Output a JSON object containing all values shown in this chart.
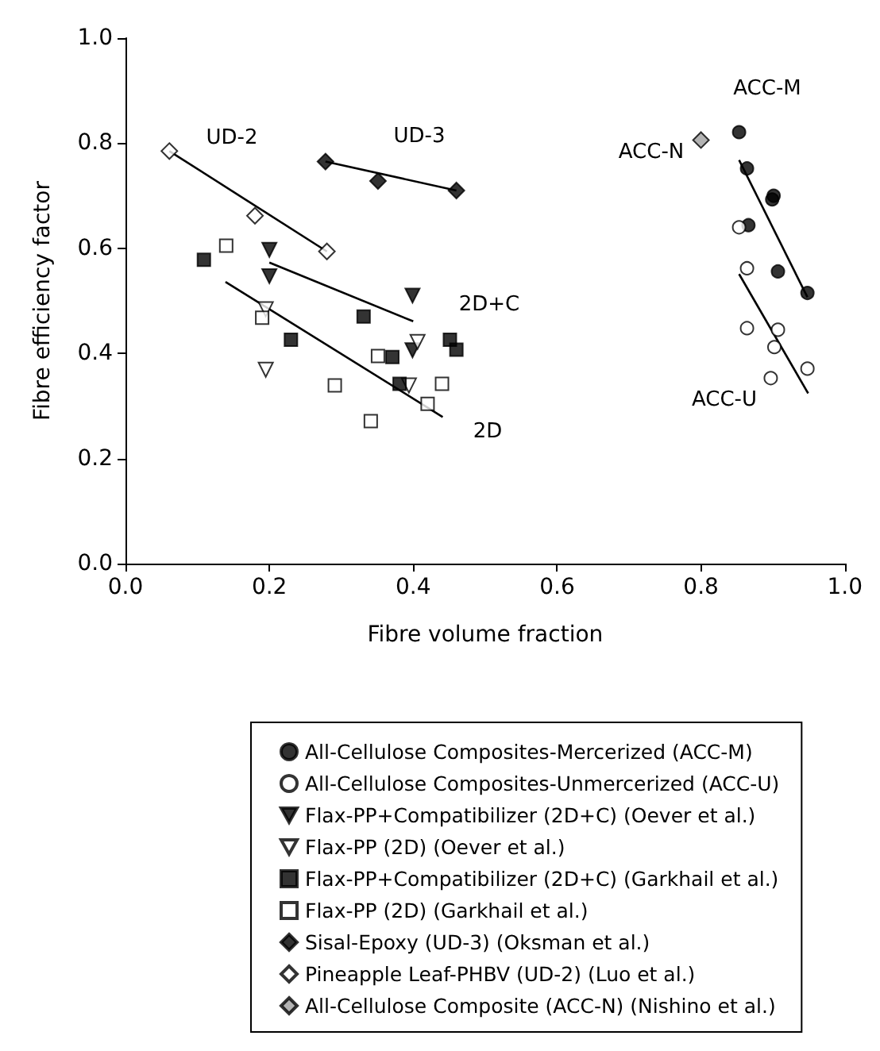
{
  "chart_data": {
    "type": "scatter",
    "xlabel": "Fibre volume fraction",
    "ylabel": "Fibre efficiency factor",
    "xlim": [
      0,
      1
    ],
    "ylim": [
      0,
      1
    ],
    "xticks": [
      {
        "value": 0,
        "label": "0.0"
      },
      {
        "value": 0.2,
        "label": "0.2"
      },
      {
        "value": 0.4,
        "label": "0.4"
      },
      {
        "value": 0.6,
        "label": "0.6"
      },
      {
        "value": 0.8,
        "label": "0.8"
      },
      {
        "value": 1,
        "label": "1.0"
      }
    ],
    "yticks": [
      {
        "value": 0,
        "label": "0.0"
      },
      {
        "value": 0.2,
        "label": "0.2"
      },
      {
        "value": 0.4,
        "label": "0.4"
      },
      {
        "value": 0.6,
        "label": "0.6"
      },
      {
        "value": 0.8,
        "label": "0.8"
      },
      {
        "value": 1,
        "label": "1.0"
      }
    ],
    "grid": false,
    "legend": "bottom",
    "series": [
      {
        "name": "All-Cellulose Composites-Mercerized (ACC-M)",
        "marker": "circle",
        "color": "#000000",
        "x": [
          0.853,
          0.864,
          0.901,
          0.899,
          0.866,
          0.907,
          0.948
        ],
        "values": [
          0.821,
          0.752,
          0.7,
          0.693,
          0.644,
          0.556,
          0.515
        ]
      },
      {
        "name": "All-Cellulose Composites-Unmercerized (ACC-U)",
        "marker": "circle",
        "color": "#ffffff",
        "x": [
          0.853,
          0.864,
          0.864,
          0.907,
          0.902,
          0.897,
          0.948
        ],
        "values": [
          0.64,
          0.562,
          0.448,
          0.445,
          0.412,
          0.353,
          0.371
        ]
      },
      {
        "name": "Flax-PP+Compatibilizer (2D+C) (Oever et al.)",
        "marker": "triangle",
        "color": "#000000",
        "x": [
          0.2,
          0.2,
          0.399,
          0.399
        ],
        "values": [
          0.597,
          0.547,
          0.51,
          0.406
        ]
      },
      {
        "name": "Flax-PP (2D) (Oever et al.)",
        "marker": "triangle",
        "color": "#ffffff",
        "x": [
          0.195,
          0.195,
          0.406,
          0.394
        ],
        "values": [
          0.484,
          0.369,
          0.422,
          0.339
        ]
      },
      {
        "name": "Flax-PP+Compatibilizer (2D+C) (Garkhail et al.)",
        "marker": "square",
        "color": "#000000",
        "x": [
          0.109,
          0.23,
          0.331,
          0.371,
          0.381,
          0.451,
          0.46
        ],
        "values": [
          0.578,
          0.426,
          0.47,
          0.393,
          0.342,
          0.426,
          0.407
        ]
      },
      {
        "name": "Flax-PP (2D) (Garkhail et al.)",
        "marker": "square",
        "color": "#ffffff",
        "x": [
          0.14,
          0.19,
          0.291,
          0.341,
          0.351,
          0.42,
          0.44
        ],
        "values": [
          0.605,
          0.468,
          0.339,
          0.271,
          0.395,
          0.304,
          0.342
        ]
      },
      {
        "name": "Sisal-Epoxy (UD-3) (Oksman et al.)",
        "marker": "diamond",
        "color": "#000000",
        "x": [
          0.278,
          0.351,
          0.46
        ],
        "values": [
          0.765,
          0.728,
          0.71
        ]
      },
      {
        "name": "Pineapple Leaf-PHBV (UD-2) (Luo et al.)",
        "marker": "diamond",
        "color": "#ffffff",
        "x": [
          0.061,
          0.18,
          0.28
        ],
        "values": [
          0.785,
          0.662,
          0.594
        ]
      },
      {
        "name": "All-Cellulose Composite (ACC-N) (Nishino et al.)",
        "marker": "diamond",
        "color": "#a0a0a0",
        "x": [
          0.8
        ],
        "values": [
          0.806
        ]
      },
      {
        "type": "line",
        "marker": "none",
        "color": "#000000",
        "x": [
          0.853,
          0.948
        ],
        "values": [
          0.768,
          0.507
        ]
      },
      {
        "type": "line",
        "marker": "none",
        "color": "#000000",
        "x": [
          0.853,
          0.949
        ],
        "values": [
          0.551,
          0.324
        ]
      },
      {
        "type": "line",
        "marker": "none",
        "color": "#000000",
        "x": [
          0.2,
          0.4
        ],
        "values": [
          0.573,
          0.461
        ]
      },
      {
        "type": "line",
        "marker": "none",
        "color": "#000000",
        "x": [
          0.139,
          0.441
        ],
        "values": [
          0.536,
          0.279
        ]
      },
      {
        "type": "line",
        "marker": "none",
        "color": "#000000",
        "x": [
          0.278,
          0.46
        ],
        "values": [
          0.765,
          0.71
        ]
      },
      {
        "type": "line",
        "marker": "none",
        "color": "#000000",
        "x": [
          0.061,
          0.28
        ],
        "values": [
          0.785,
          0.594
        ]
      }
    ],
    "annotations": [
      "UD-2",
      "UD-3",
      "2D+C",
      "2D",
      "ACC-M",
      "ACC-N",
      "ACC-U"
    ]
  }
}
